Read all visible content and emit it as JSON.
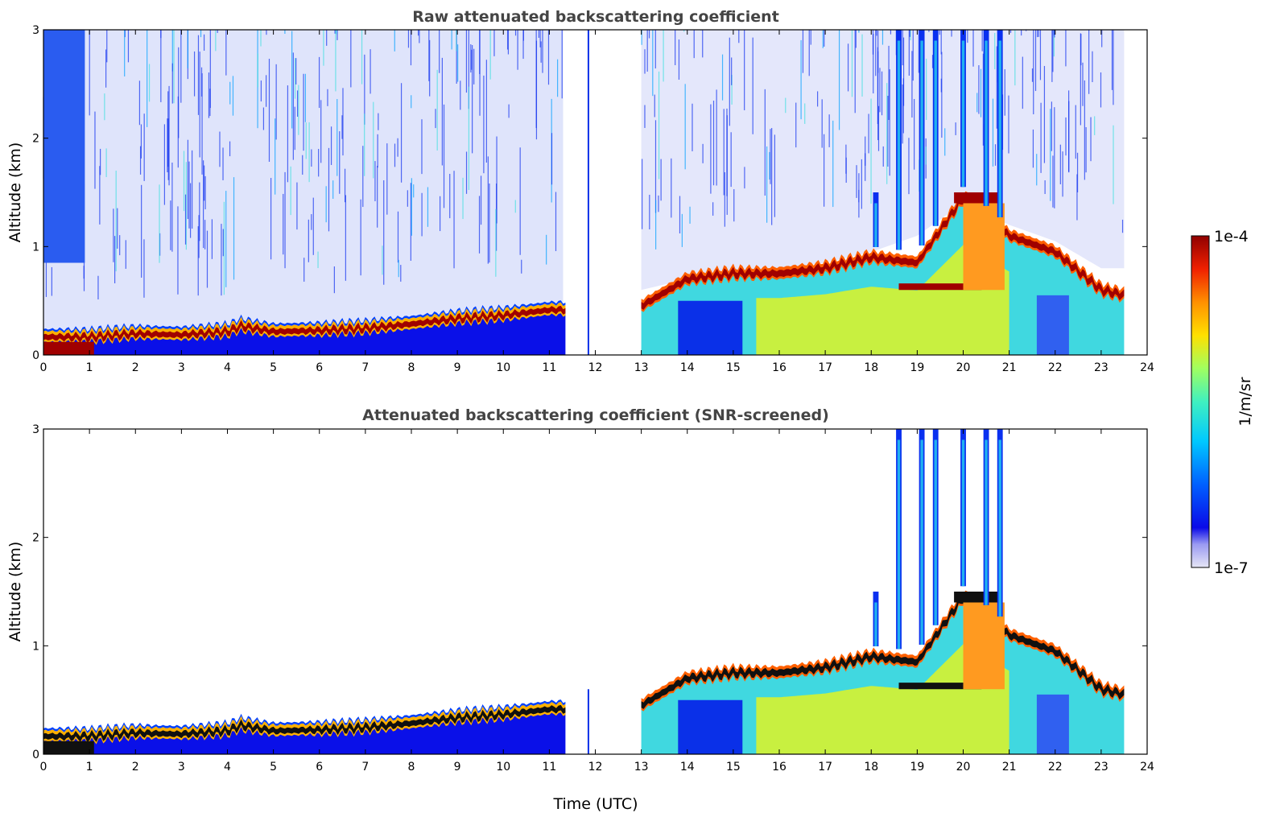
{
  "chart_data": [
    {
      "type": "heatmap",
      "title": "Raw attenuated backscattering coefficient",
      "xlabel": "",
      "ylabel": "Altitude (km)",
      "xlim": [
        0,
        24
      ],
      "ylim": [
        0,
        3
      ],
      "xticks": [
        "0",
        "1",
        "2",
        "3",
        "4",
        "5",
        "6",
        "7",
        "8",
        "9",
        "10",
        "11",
        "12",
        "13",
        "14",
        "15",
        "16",
        "17",
        "18",
        "19",
        "20",
        "21",
        "22",
        "23",
        "24"
      ],
      "yticks": [
        "0",
        "1",
        "2",
        "3"
      ],
      "data_gaps_utc": [
        [
          11.35,
          13.0
        ]
      ],
      "boundary_layer_top_km": [
        [
          0,
          0.2
        ],
        [
          1,
          0.2
        ],
        [
          2,
          0.23
        ],
        [
          3,
          0.22
        ],
        [
          4,
          0.25
        ],
        [
          4.3,
          0.3
        ],
        [
          5,
          0.25
        ],
        [
          6,
          0.26
        ],
        [
          7,
          0.28
        ],
        [
          8,
          0.32
        ],
        [
          9,
          0.37
        ],
        [
          10,
          0.4
        ],
        [
          11,
          0.45
        ],
        [
          11.35,
          0.45
        ],
        [
          13,
          0.6
        ],
        [
          14,
          0.7
        ],
        [
          15,
          0.7
        ],
        [
          16,
          0.8
        ],
        [
          17,
          0.85
        ],
        [
          18,
          0.95
        ],
        [
          19,
          1.1
        ],
        [
          20,
          1.4
        ],
        [
          21,
          1.2
        ],
        [
          22,
          1.05
        ],
        [
          23,
          0.8
        ],
        [
          23.5,
          0.8
        ]
      ],
      "cloud_layer_km": [
        [
          13,
          0.45
        ],
        [
          14,
          0.7
        ],
        [
          15,
          0.75
        ],
        [
          16,
          0.75
        ],
        [
          17,
          0.8
        ],
        [
          18,
          0.9
        ],
        [
          19,
          0.85
        ],
        [
          20,
          1.45
        ],
        [
          21,
          1.1
        ],
        [
          22,
          0.95
        ],
        [
          23,
          0.6
        ],
        [
          23.5,
          0.55
        ]
      ],
      "plumes_utc": [
        [
          18.1,
          1.5
        ],
        [
          18.6,
          3.0
        ],
        [
          19.1,
          3.0
        ],
        [
          19.4,
          3.0
        ],
        [
          20.0,
          3.0
        ],
        [
          20.5,
          3.0
        ],
        [
          20.8,
          3.0
        ]
      ]
    },
    {
      "type": "heatmap",
      "title": "Attenuated backscattering coefficient (SNR-screened)",
      "xlabel": "Time (UTC)",
      "ylabel": "Altitude (km)",
      "xlim": [
        0,
        24
      ],
      "ylim": [
        0,
        3
      ],
      "xticks": [
        "0",
        "1",
        "2",
        "3",
        "4",
        "5",
        "6",
        "7",
        "8",
        "9",
        "10",
        "11",
        "12",
        "13",
        "14",
        "15",
        "16",
        "17",
        "18",
        "19",
        "20",
        "21",
        "22",
        "23",
        "24"
      ],
      "yticks": [
        "0",
        "1",
        "2",
        "3"
      ],
      "data_gaps_utc": [
        [
          11.35,
          13.0
        ]
      ],
      "boundary_layer_top_km": [
        [
          0,
          0.2
        ],
        [
          1,
          0.2
        ],
        [
          2,
          0.23
        ],
        [
          3,
          0.22
        ],
        [
          4,
          0.25
        ],
        [
          4.3,
          0.3
        ],
        [
          5,
          0.25
        ],
        [
          6,
          0.26
        ],
        [
          7,
          0.28
        ],
        [
          8,
          0.32
        ],
        [
          9,
          0.37
        ],
        [
          10,
          0.4
        ],
        [
          11,
          0.45
        ],
        [
          11.35,
          0.45
        ],
        [
          13,
          0.6
        ],
        [
          14,
          0.7
        ],
        [
          15,
          0.7
        ],
        [
          16,
          0.8
        ],
        [
          17,
          0.85
        ],
        [
          18,
          0.95
        ],
        [
          19,
          1.1
        ],
        [
          20,
          1.4
        ],
        [
          21,
          1.2
        ],
        [
          22,
          1.05
        ],
        [
          23,
          0.8
        ],
        [
          23.5,
          0.8
        ]
      ],
      "cloud_layer_km": [
        [
          13,
          0.45
        ],
        [
          14,
          0.7
        ],
        [
          15,
          0.75
        ],
        [
          16,
          0.75
        ],
        [
          17,
          0.8
        ],
        [
          18,
          0.9
        ],
        [
          19,
          0.85
        ],
        [
          20,
          1.45
        ],
        [
          21,
          1.1
        ],
        [
          22,
          0.95
        ],
        [
          23,
          0.6
        ],
        [
          23.5,
          0.55
        ]
      ],
      "plumes_utc": [
        [
          18.1,
          1.5
        ],
        [
          18.6,
          3.0
        ],
        [
          19.1,
          3.0
        ],
        [
          19.4,
          3.0
        ],
        [
          20.0,
          3.0
        ],
        [
          20.5,
          3.0
        ],
        [
          20.8,
          3.0
        ]
      ]
    }
  ],
  "colorbar": {
    "label": "1/m/sr",
    "max_label": "1e-4",
    "min_label": "1e-7",
    "colors": [
      "#e6e6f5",
      "#c8c8f0",
      "#9a9af2",
      "#5050f0",
      "#0a0ae8",
      "#0040ff",
      "#0090ff",
      "#00d0ff",
      "#30f0d0",
      "#80ff80",
      "#d0ff30",
      "#ffe000",
      "#ffa000",
      "#ff5000",
      "#e80000",
      "#a00000"
    ]
  }
}
